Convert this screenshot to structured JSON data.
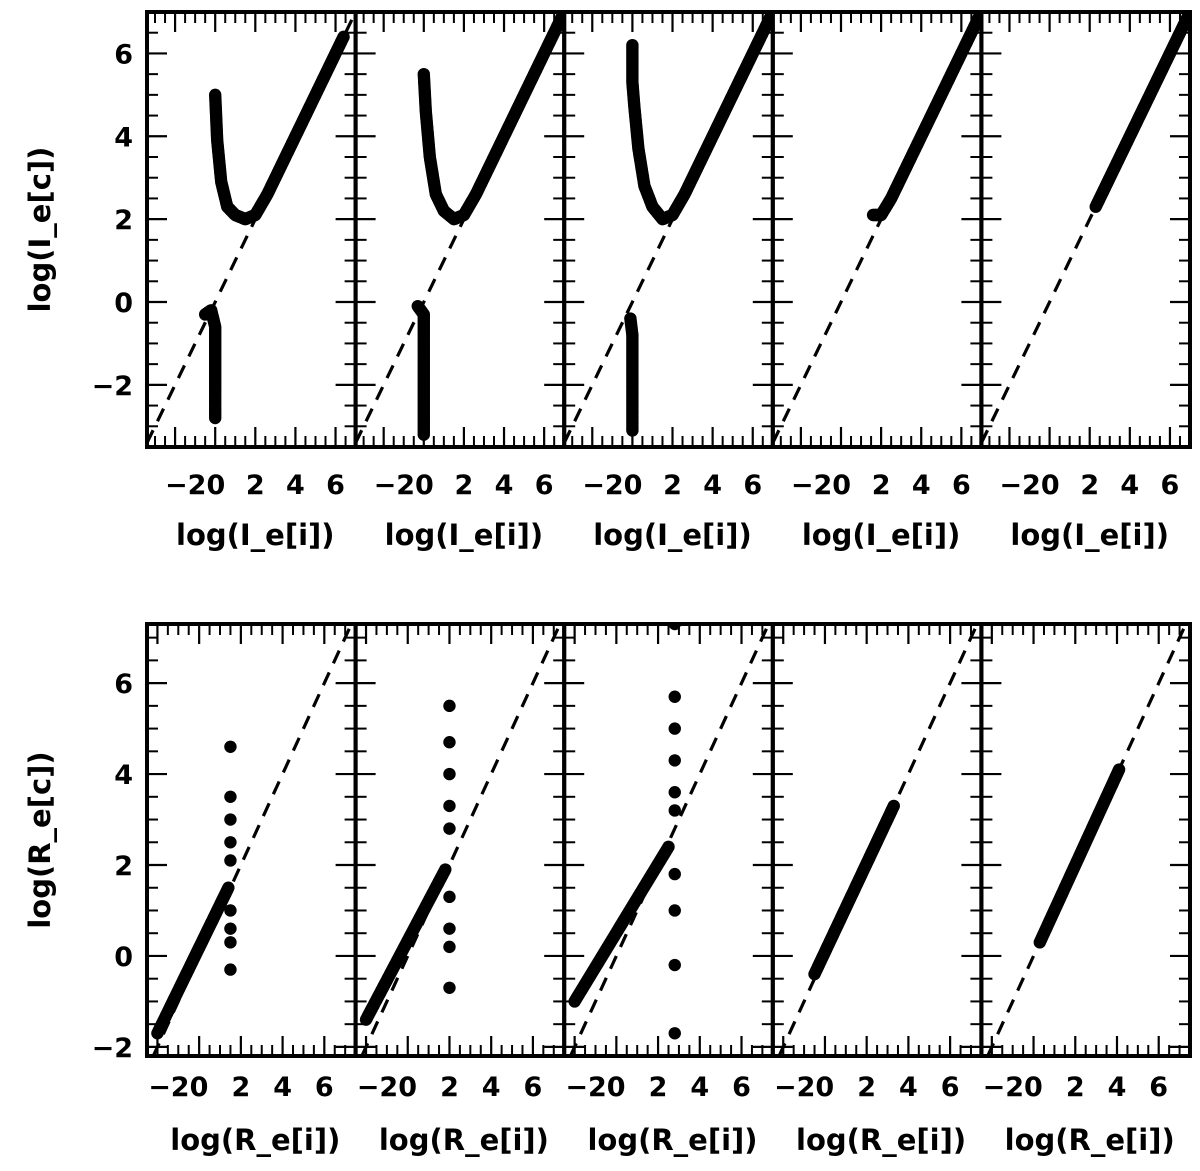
{
  "chart_data": [
    {
      "type": "scatter",
      "rows": 1,
      "ylabel": "log(I_e[c])",
      "panel_xlabel": "log(I_e[i])",
      "xlim": [
        -3.4,
        7.0
      ],
      "ylim": [
        -3.5,
        7.0
      ],
      "xticks": [
        -2,
        0,
        2,
        4,
        6
      ],
      "xtick_labels": [
        "−2",
        "0",
        "2",
        "4",
        "6"
      ],
      "yticks": [
        -2,
        0,
        2,
        4,
        6
      ],
      "ytick_labels": [
        "−2",
        "0",
        "2",
        "4",
        "6"
      ],
      "reference_line": "y = x",
      "panels": [
        {
          "xlabel": "log(I_e[i])",
          "upper_branch": {
            "x": [
              0.0,
              0.1,
              0.3,
              0.6,
              1.0,
              1.5,
              2.0,
              2.6,
              3.5,
              4.5,
              5.5,
              6.4
            ],
            "y": [
              5.0,
              3.9,
              2.9,
              2.3,
              2.1,
              2.0,
              2.1,
              2.6,
              3.5,
              4.5,
              5.5,
              6.4
            ]
          },
          "lower_branch": {
            "x": [
              -0.5,
              -0.2,
              0.0,
              0.0,
              0.0,
              0.0,
              0.0
            ],
            "y": [
              -0.3,
              -0.2,
              -0.6,
              -1.1,
              -1.6,
              -2.1,
              -2.8
            ]
          }
        },
        {
          "xlabel": "log(I_e[i])",
          "upper_branch": {
            "x": [
              0.0,
              0.1,
              0.3,
              0.6,
              1.0,
              1.5,
              2.0,
              2.6,
              3.5,
              4.5,
              5.5,
              6.5,
              7.0
            ],
            "y": [
              5.5,
              4.6,
              3.5,
              2.6,
              2.2,
              2.0,
              2.1,
              2.6,
              3.5,
              4.5,
              5.5,
              6.5,
              7.0
            ]
          },
          "lower_branch": {
            "x": [
              -0.3,
              0.0,
              0.0,
              0.0,
              0.0,
              0.0,
              0.0
            ],
            "y": [
              -0.1,
              -0.3,
              -0.8,
              -1.4,
              -2.0,
              -2.6,
              -3.2
            ]
          }
        },
        {
          "xlabel": "log(I_e[i])",
          "upper_branch": {
            "x": [
              0.0,
              0.0,
              0.1,
              0.3,
              0.6,
              1.0,
              1.5,
              2.0,
              2.6,
              3.5,
              4.5,
              5.5,
              6.5,
              7.0
            ],
            "y": [
              6.2,
              5.3,
              4.7,
              3.7,
              2.8,
              2.3,
              2.0,
              2.1,
              2.6,
              3.5,
              4.5,
              5.5,
              6.5,
              7.0
            ]
          },
          "lower_branch": {
            "x": [
              -0.1,
              0.0,
              0.0,
              0.0,
              0.0,
              0.0,
              0.0
            ],
            "y": [
              -0.4,
              -0.8,
              -1.2,
              -1.7,
              -2.2,
              -2.6,
              -3.1
            ]
          }
        },
        {
          "xlabel": "log(I_e[i])",
          "upper_branch": {
            "x": [
              1.6,
              2.0,
              2.5,
              3.0,
              3.5,
              4.0,
              4.5,
              5.0,
              5.5,
              6.0,
              6.5,
              7.0
            ],
            "y": [
              2.1,
              2.1,
              2.5,
              3.0,
              3.5,
              4.0,
              4.5,
              5.0,
              5.5,
              6.0,
              6.5,
              7.0
            ]
          },
          "lower_branch": {
            "x": [],
            "y": []
          }
        },
        {
          "xlabel": "log(I_e[i])",
          "upper_branch": {
            "x": [
              2.3,
              3.0,
              3.5,
              4.0,
              4.5,
              5.0,
              5.5,
              6.0,
              6.5,
              7.0
            ],
            "y": [
              2.3,
              3.0,
              3.5,
              4.0,
              4.5,
              5.0,
              5.5,
              6.0,
              6.5,
              7.0
            ]
          },
          "lower_branch": {
            "x": [],
            "y": []
          }
        }
      ]
    },
    {
      "type": "scatter",
      "rows": 1,
      "ylabel": "log(R_e[c])",
      "panel_xlabel": "log(R_e[i])",
      "xlim": [
        -2.5,
        7.5
      ],
      "ylim": [
        -2.2,
        7.3
      ],
      "xticks": [
        -2,
        0,
        2,
        4,
        6
      ],
      "xtick_labels": [
        "−2",
        "0",
        "2",
        "4",
        "6"
      ],
      "yticks": [
        -2,
        0,
        2,
        4,
        6
      ],
      "ytick_labels": [
        "−2",
        "0",
        "2",
        "4",
        "6"
      ],
      "reference_line": "y = x",
      "panels": [
        {
          "xlabel": "log(R_e[i])",
          "line_segment": {
            "x": [
              -2.0,
              1.4
            ],
            "y": [
              -1.7,
              1.5
            ]
          },
          "vertical_spread": {
            "x": [
              1.5,
              1.5,
              1.5,
              1.5,
              1.5,
              1.5,
              1.5,
              1.5,
              1.5
            ],
            "y": [
              4.6,
              3.5,
              3.0,
              2.5,
              2.1,
              1.0,
              0.6,
              0.3,
              -0.3
            ]
          }
        },
        {
          "xlabel": "log(R_e[i])",
          "line_segment": {
            "x": [
              -2.0,
              1.8
            ],
            "y": [
              -1.4,
              1.9
            ]
          },
          "vertical_spread": {
            "x": [
              2.0,
              2.0,
              2.0,
              2.0,
              2.0,
              2.0,
              2.0,
              2.0,
              2.0
            ],
            "y": [
              5.5,
              4.7,
              4.0,
              3.3,
              2.8,
              1.3,
              0.6,
              0.2,
              -0.7
            ]
          }
        },
        {
          "xlabel": "log(R_e[i])",
          "line_segment": {
            "x": [
              -2.0,
              2.5
            ],
            "y": [
              -1.0,
              2.4
            ]
          },
          "vertical_spread": {
            "x": [
              2.8,
              2.8,
              2.8,
              2.8,
              2.8,
              2.8,
              2.8,
              2.8,
              2.8,
              2.8
            ],
            "y": [
              7.3,
              5.7,
              5.0,
              4.3,
              3.6,
              3.2,
              1.8,
              1.0,
              -0.2,
              -1.7
            ]
          }
        },
        {
          "xlabel": "log(R_e[i])",
          "line_segment": {
            "x": [
              -0.5,
              3.3
            ],
            "y": [
              -0.4,
              3.3
            ]
          },
          "vertical_spread": {
            "x": [],
            "y": []
          }
        },
        {
          "xlabel": "log(R_e[i])",
          "line_segment": {
            "x": [
              0.3,
              4.1
            ],
            "y": [
              0.3,
              4.1
            ]
          },
          "vertical_spread": {
            "x": [],
            "y": []
          }
        }
      ]
    }
  ]
}
